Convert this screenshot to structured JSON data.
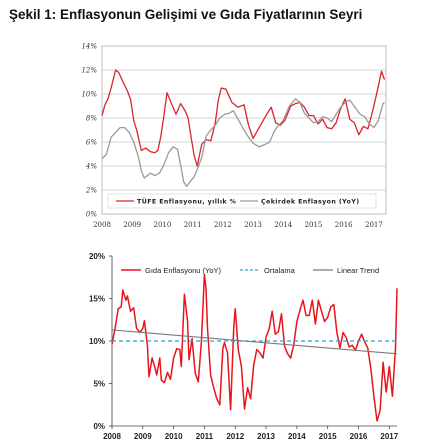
{
  "figure_title": "Şekil 1: Enflasyonun Gelişimi ve Gıda Fiyatlarının Seyri",
  "chart_data": [
    {
      "type": "line",
      "x_ticks": [
        "2008",
        "2009",
        "2010",
        "2011",
        "2012",
        "2013",
        "2014",
        "2015",
        "2016",
        "2017"
      ],
      "y_ticks": [
        "0%",
        "2%",
        "4%",
        "6%",
        "8%",
        "10%",
        "12%",
        "14%"
      ],
      "ylim": [
        0,
        14
      ],
      "xlim": [
        2008,
        2017.4
      ],
      "grid": true,
      "legend_position": "bottom-inside",
      "series": [
        {
          "name": "TÜFE Enflasyonu, yıllık %",
          "color": "#d9252b",
          "x": [
            2008.0,
            2008.1,
            2008.2,
            2008.3,
            2008.45,
            2008.55,
            2008.7,
            2008.85,
            2008.95,
            2009.05,
            2009.15,
            2009.3,
            2009.45,
            2009.6,
            2009.75,
            2009.85,
            2009.95,
            2010.05,
            2010.15,
            2010.3,
            2010.45,
            2010.6,
            2010.75,
            2010.85,
            2010.95,
            2011.05,
            2011.15,
            2011.3,
            2011.45,
            2011.6,
            2011.75,
            2011.85,
            2011.95,
            2012.1,
            2012.3,
            2012.5,
            2012.7,
            2012.85,
            2013.0,
            2013.2,
            2013.45,
            2013.6,
            2013.75,
            2013.9,
            2014.05,
            2014.25,
            2014.4,
            2014.55,
            2014.7,
            2014.85,
            2015.0,
            2015.15,
            2015.3,
            2015.45,
            2015.6,
            2015.75,
            2015.9,
            2016.05,
            2016.2,
            2016.35,
            2016.5,
            2016.65,
            2016.8,
            2016.95,
            2017.1,
            2017.25,
            2017.35
          ],
          "values": [
            8.2,
            9.1,
            9.6,
            10.5,
            12.0,
            11.8,
            11.0,
            10.2,
            9.5,
            7.8,
            7.0,
            5.3,
            5.5,
            5.2,
            5.1,
            5.3,
            6.5,
            8.2,
            10.1,
            9.2,
            8.3,
            9.2,
            8.6,
            8.0,
            6.4,
            4.9,
            4.0,
            5.8,
            6.2,
            6.1,
            7.6,
            9.5,
            10.5,
            10.4,
            9.3,
            8.9,
            9.1,
            7.4,
            6.3,
            7.2,
            8.3,
            8.9,
            7.6,
            7.4,
            7.8,
            9.0,
            9.2,
            9.3,
            8.9,
            8.2,
            8.2,
            7.5,
            7.9,
            7.2,
            7.1,
            7.6,
            8.8,
            9.6,
            7.9,
            7.6,
            6.6,
            7.3,
            7.1,
            8.5,
            10.1,
            11.9,
            11.2
          ]
        },
        {
          "name": "Çekirdek Enflasyon (YoY)",
          "color": "#9a9a9a",
          "x": [
            2008.0,
            2008.15,
            2008.3,
            2008.45,
            2008.6,
            2008.75,
            2008.9,
            2009.05,
            2009.2,
            2009.3,
            2009.4,
            2009.5,
            2009.6,
            2009.75,
            2009.9,
            2010.05,
            2010.2,
            2010.35,
            2010.5,
            2010.6,
            2010.7,
            2010.8,
            2010.95,
            2011.05,
            2011.15,
            2011.3,
            2011.45,
            2011.6,
            2011.75,
            2011.9,
            2012.05,
            2012.2,
            2012.35,
            2012.5,
            2012.7,
            2012.85,
            2013.0,
            2013.2,
            2013.4,
            2013.55,
            2013.7,
            2013.85,
            2014.0,
            2014.2,
            2014.4,
            2014.55,
            2014.7,
            2014.85,
            2015.0,
            2015.15,
            2015.3,
            2015.45,
            2015.6,
            2015.75,
            2015.9,
            2016.05,
            2016.2,
            2016.4,
            2016.55,
            2016.7,
            2016.85,
            2017.0,
            2017.15,
            2017.3,
            2017.35
          ],
          "values": [
            4.6,
            5.0,
            6.4,
            6.8,
            7.2,
            7.2,
            6.8,
            6.0,
            4.8,
            3.6,
            3.0,
            3.2,
            3.4,
            3.2,
            3.4,
            4.1,
            5.1,
            5.6,
            5.4,
            4.1,
            2.7,
            2.3,
            2.8,
            3.1,
            3.7,
            4.7,
            6.5,
            7.0,
            7.4,
            8.0,
            8.3,
            8.4,
            8.6,
            7.9,
            7.0,
            6.4,
            5.9,
            5.6,
            5.8,
            6.0,
            6.9,
            7.4,
            7.8,
            9.0,
            9.6,
            9.3,
            8.4,
            8.0,
            7.6,
            7.7,
            8.1,
            8.0,
            7.7,
            8.3,
            8.9,
            9.3,
            9.5,
            8.8,
            8.3,
            8.1,
            7.5,
            7.2,
            7.8,
            9.2,
            9.3
          ]
        }
      ]
    },
    {
      "type": "line",
      "x_ticks": [
        "2008",
        "2009",
        "2010",
        "2011",
        "2012",
        "2013",
        "2014",
        "2015",
        "2016",
        "2017"
      ],
      "y_ticks": [
        "0%",
        "5%",
        "10%",
        "15%",
        "20%"
      ],
      "ylim": [
        0,
        20
      ],
      "xlim": [
        2008,
        2017.25
      ],
      "grid": false,
      "legend_position": "top",
      "series": [
        {
          "name": "Gıda Enflasyonu (YoY)",
          "color": "#e8141c",
          "x": [
            2008.0,
            2008.1,
            2008.2,
            2008.3,
            2008.35,
            2008.45,
            2008.5,
            2008.6,
            2008.7,
            2008.8,
            2008.9,
            2009.0,
            2009.05,
            2009.15,
            2009.2,
            2009.3,
            2009.4,
            2009.45,
            2009.55,
            2009.6,
            2009.7,
            2009.8,
            2009.9,
            2010.0,
            2010.1,
            2010.2,
            2010.25,
            2010.35,
            2010.45,
            2010.5,
            2010.6,
            2010.7,
            2010.8,
            2010.9,
            2011.0,
            2011.05,
            2011.1,
            2011.2,
            2011.3,
            2011.4,
            2011.5,
            2011.6,
            2011.65,
            2011.75,
            2011.85,
            2011.95,
            2012.0,
            2012.1,
            2012.2,
            2012.3,
            2012.4,
            2012.5,
            2012.6,
            2012.7,
            2012.8,
            2012.9,
            2013.0,
            2013.1,
            2013.2,
            2013.3,
            2013.4,
            2013.5,
            2013.6,
            2013.7,
            2013.8,
            2013.9,
            2014.0,
            2014.1,
            2014.2,
            2014.3,
            2014.4,
            2014.5,
            2014.6,
            2014.7,
            2014.8,
            2014.9,
            2015.0,
            2015.1,
            2015.2,
            2015.3,
            2015.4,
            2015.5,
            2015.6,
            2015.7,
            2015.8,
            2015.9,
            2016.0,
            2016.1,
            2016.2,
            2016.3,
            2016.4,
            2016.5,
            2016.6,
            2016.7,
            2016.8,
            2016.9,
            2017.0,
            2017.1,
            2017.2,
            2017.25
          ],
          "values": [
            9.6,
            11.5,
            13.8,
            14.0,
            16.0,
            14.8,
            15.3,
            13.5,
            13.9,
            11.5,
            11.0,
            11.5,
            12.4,
            9.5,
            5.8,
            8.0,
            6.8,
            6.0,
            8.0,
            5.4,
            5.1,
            6.3,
            5.5,
            8.0,
            9.1,
            9.0,
            7.0,
            15.5,
            12.4,
            7.8,
            10.3,
            6.2,
            5.2,
            9.9,
            17.8,
            16.2,
            11.5,
            6.0,
            4.5,
            3.2,
            2.5,
            9.2,
            9.8,
            8.6,
            1.9,
            11.5,
            13.8,
            9.0,
            7.0,
            2.0,
            4.5,
            3.2,
            7.2,
            9.0,
            8.6,
            8.0,
            10.5,
            11.4,
            13.5,
            10.8,
            11.1,
            13.2,
            9.4,
            8.5,
            8.0,
            9.6,
            12.3,
            13.6,
            14.8,
            13.0,
            13.0,
            14.8,
            12.0,
            14.8,
            13.5,
            12.3,
            12.8,
            14.0,
            14.3,
            11.0,
            9.2,
            11.0,
            10.4,
            9.3,
            9.5,
            8.9,
            10.0,
            10.8,
            9.9,
            9.2,
            6.8,
            3.5,
            0.6,
            1.8,
            7.5,
            4.0,
            7.0,
            3.5,
            9.2,
            16.2
          ]
        },
        {
          "name": "Ortalama",
          "color": "#2aa0d8",
          "x": [
            2008.0,
            2017.25
          ],
          "values": [
            10.0,
            10.0
          ]
        },
        {
          "name": "Linear Trend",
          "color": "#7a7a7a",
          "x": [
            2008.0,
            2017.25
          ],
          "values": [
            11.3,
            8.5
          ]
        }
      ]
    }
  ]
}
